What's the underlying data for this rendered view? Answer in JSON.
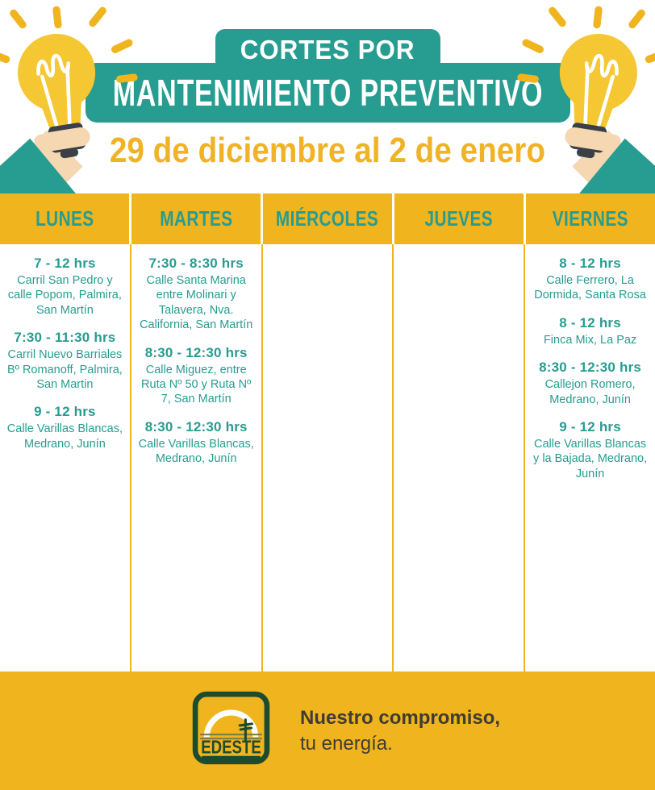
{
  "header": {
    "title_line1": "CORTES POR",
    "title_line2": "MANTENIMIENTO PREVENTIVO",
    "date_range": "29 de diciembre al 2 de enero"
  },
  "colors": {
    "teal": "#279c90",
    "gold": "#efb41e",
    "gold_text": "#f0b325",
    "bulb_yellow": "#f5c733",
    "base_dark": "#3a4045",
    "skin": "#f5d7b2",
    "logo_green": "#1c4b30",
    "slogan_text": "#3f3c35"
  },
  "schedule": {
    "days": [
      {
        "label": "LUNES",
        "entries": [
          {
            "time": "7 - 12 hrs",
            "location": "Carril San Pedro y calle Popom, Palmira, San Martín"
          },
          {
            "time": "7:30 - 11:30 hrs",
            "location": "Carril Nuevo Barriales Bº Romanoff, Palmira, San Martin"
          },
          {
            "time": "9 - 12 hrs",
            "location": "Calle Varillas Blancas, Medrano, Junín"
          }
        ]
      },
      {
        "label": "MARTES",
        "entries": [
          {
            "time": "7:30 - 8:30 hrs",
            "location": "Calle Santa Marina entre Molinari y Talavera, Nva. California, San Martín"
          },
          {
            "time": "8:30 - 12:30 hrs",
            "location": "Calle Miguez, entre Ruta Nº 50 y Ruta Nº 7, San Martín"
          },
          {
            "time": "8:30 - 12:30 hrs",
            "location": "Calle Varillas Blancas, Medrano, Junín"
          }
        ]
      },
      {
        "label": "MIÉRCOLES",
        "entries": []
      },
      {
        "label": "JUEVES",
        "entries": []
      },
      {
        "label": "VIERNES",
        "entries": [
          {
            "time": "8 - 12 hrs",
            "location": "Calle Ferrero, La Dormida, Santa Rosa"
          },
          {
            "time": "8 - 12 hrs",
            "location": "Finca Mix, La Paz"
          },
          {
            "time": "8:30 - 12:30 hrs",
            "location": "Callejon Romero, Medrano, Junín"
          },
          {
            "time": "9 - 12 hrs",
            "location": "Calle Varillas Blancas y la Bajada, Medrano, Junín"
          }
        ]
      }
    ]
  },
  "footer": {
    "logo_text": "EDESTE",
    "slogan_line1": "Nuestro compromiso,",
    "slogan_line2": "tu energía."
  }
}
